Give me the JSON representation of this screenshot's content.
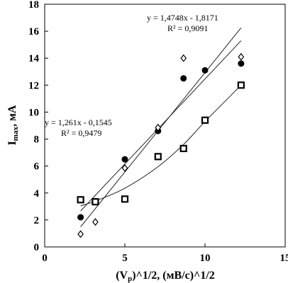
{
  "chart_data": {
    "type": "scatter",
    "title": "",
    "xlabel": "(Vр)^1/2, (мВ/с)^1/2",
    "xlabel_main": "(V",
    "xlabel_sub": "p",
    "xlabel_rest": ")^1/2, (мВ/с)^1/2",
    "ylabel": "Iₘₐₓ, мА",
    "ylabel_main": "I",
    "ylabel_sub": "max",
    "ylabel_rest": ", мА",
    "xlim": [
      0,
      15
    ],
    "ylim": [
      0,
      18
    ],
    "xticks": [
      0,
      5,
      10,
      15
    ],
    "yticks": [
      0,
      2,
      4,
      6,
      8,
      10,
      12,
      14,
      16,
      18
    ],
    "grid": false,
    "legend": "none",
    "series": [
      {
        "marker": "circle",
        "color": "#000000",
        "x": [
          2.24,
          3.16,
          5.0,
          7.07,
          8.66,
          10.0,
          12.25
        ],
        "y": [
          2.2,
          3.4,
          6.5,
          8.6,
          12.5,
          13.1,
          13.6
        ]
      },
      {
        "marker": "diamond",
        "color": "#000000",
        "x": [
          2.24,
          3.16,
          5.0,
          7.07,
          8.66,
          12.25
        ],
        "y": [
          0.95,
          1.85,
          5.85,
          8.85,
          14.0,
          14.1
        ]
      },
      {
        "marker": "square",
        "color": "#000000",
        "x": [
          2.24,
          3.16,
          5.0,
          7.07,
          8.66,
          10.0,
          12.25
        ],
        "y": [
          3.5,
          3.35,
          3.55,
          6.7,
          7.3,
          9.4,
          12.0
        ]
      }
    ],
    "trendlines": [
      {
        "type": "linear",
        "slope": 1.261,
        "intercept": -0.1545,
        "x_range": [
          2.24,
          12.25
        ]
      },
      {
        "type": "linear",
        "slope": 1.4748,
        "intercept": -1.8171,
        "x_range": [
          2.24,
          12.25
        ]
      },
      {
        "type": "curve",
        "x": [
          2.24,
          3.16,
          5.0,
          7.07,
          8.66,
          10.0,
          12.25
        ],
        "y": [
          3.05,
          3.4,
          4.35,
          5.95,
          7.6,
          9.3,
          12.0
        ]
      }
    ],
    "annotations": [
      {
        "line1": "y = 1,4748x - 1,8171",
        "line2": "R² = 0,9091"
      },
      {
        "line1": "y = 1,261x - 0,1545",
        "line2": "R² = 0,9479"
      }
    ]
  }
}
